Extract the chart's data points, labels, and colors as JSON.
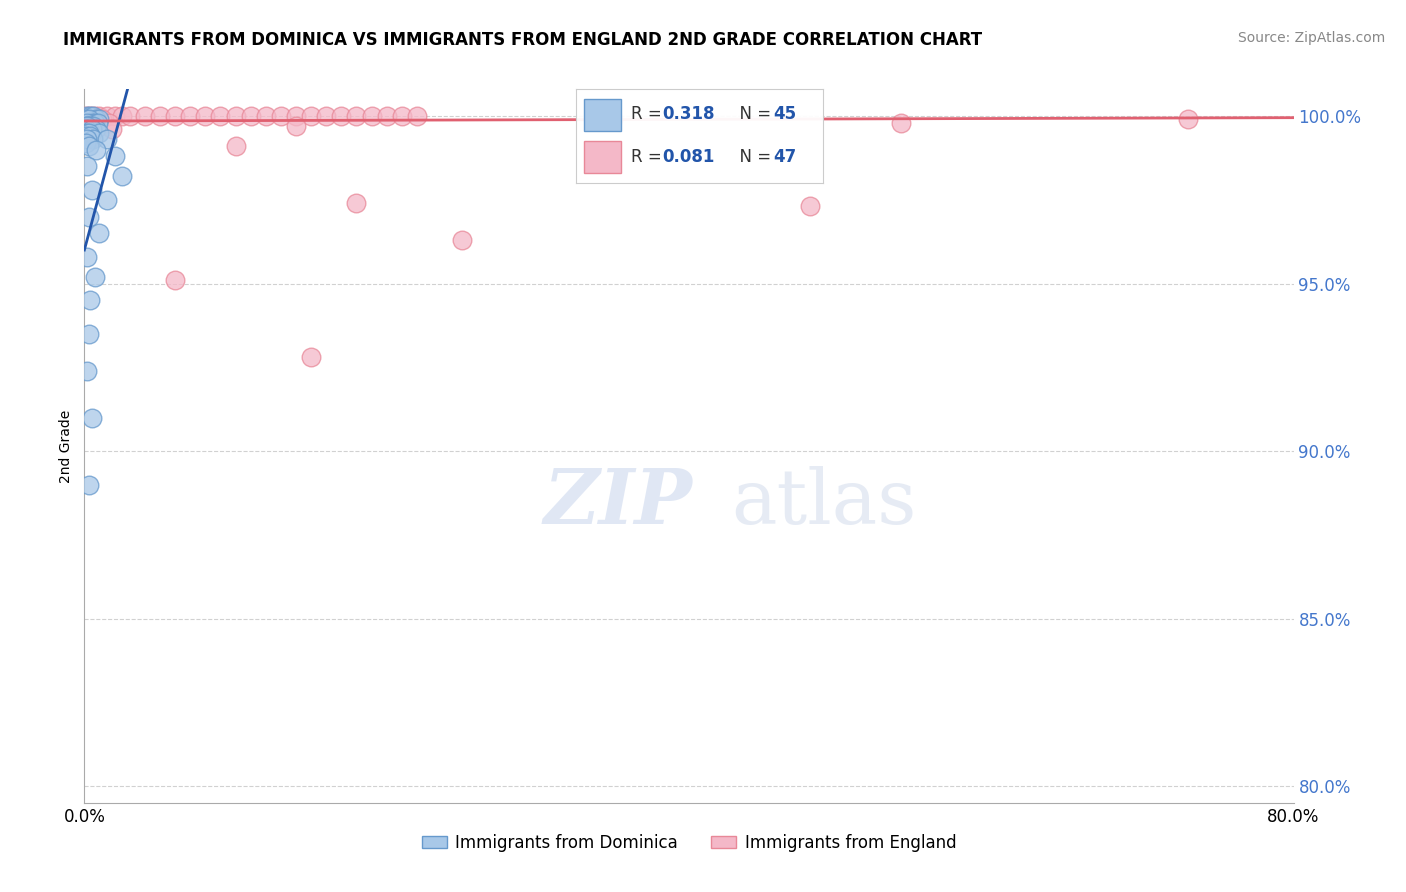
{
  "title": "IMMIGRANTS FROM DOMINICA VS IMMIGRANTS FROM ENGLAND 2ND GRADE CORRELATION CHART",
  "source": "Source: ZipAtlas.com",
  "ylabel": "2nd Grade",
  "xlim": [
    0.0,
    0.8
  ],
  "ylim": [
    0.795,
    1.008
  ],
  "yticks": [
    0.8,
    0.85,
    0.9,
    0.95,
    1.0
  ],
  "ytick_labels": [
    "80.0%",
    "85.0%",
    "90.0%",
    "95.0%",
    "100.0%"
  ],
  "xticks": [
    0.0,
    0.1,
    0.2,
    0.3,
    0.4,
    0.5,
    0.6,
    0.7,
    0.8
  ],
  "xtick_labels": [
    "0.0%",
    "",
    "",
    "",
    "",
    "",
    "",
    "",
    "80.0%"
  ],
  "blue_R": 0.318,
  "blue_N": 45,
  "pink_R": 0.081,
  "pink_N": 47,
  "blue_color": "#a8c8e8",
  "pink_color": "#f4b8c8",
  "blue_edge_color": "#6699cc",
  "pink_edge_color": "#e88898",
  "blue_line_color": "#2255aa",
  "pink_line_color": "#e06070",
  "legend_label_blue": "Immigrants from Dominica",
  "legend_label_pink": "Immigrants from England",
  "blue_line_x0": 0.0,
  "blue_line_y0": 0.96,
  "blue_line_x1": 0.025,
  "blue_line_y1": 1.002,
  "pink_line_x0": 0.0,
  "pink_line_y0": 0.9985,
  "pink_line_x1": 0.8,
  "pink_line_y1": 0.9995,
  "blue_dots": [
    [
      0.002,
      1.0
    ],
    [
      0.004,
      1.0
    ],
    [
      0.006,
      1.0
    ],
    [
      0.008,
      0.999
    ],
    [
      0.01,
      0.999
    ],
    [
      0.001,
      0.999
    ],
    [
      0.003,
      0.999
    ],
    [
      0.005,
      0.998
    ],
    [
      0.007,
      0.998
    ],
    [
      0.002,
      0.998
    ],
    [
      0.009,
      0.998
    ],
    [
      0.003,
      0.997
    ],
    [
      0.001,
      0.997
    ],
    [
      0.004,
      0.997
    ],
    [
      0.006,
      0.997
    ],
    [
      0.002,
      0.997
    ],
    [
      0.008,
      0.996
    ],
    [
      0.003,
      0.996
    ],
    [
      0.001,
      0.996
    ],
    [
      0.005,
      0.996
    ],
    [
      0.002,
      0.995
    ],
    [
      0.01,
      0.995
    ],
    [
      0.003,
      0.995
    ],
    [
      0.001,
      0.994
    ],
    [
      0.004,
      0.994
    ],
    [
      0.006,
      0.993
    ],
    [
      0.002,
      0.993
    ],
    [
      0.015,
      0.993
    ],
    [
      0.001,
      0.992
    ],
    [
      0.003,
      0.991
    ],
    [
      0.008,
      0.99
    ],
    [
      0.02,
      0.988
    ],
    [
      0.002,
      0.985
    ],
    [
      0.025,
      0.982
    ],
    [
      0.005,
      0.978
    ],
    [
      0.015,
      0.975
    ],
    [
      0.003,
      0.97
    ],
    [
      0.01,
      0.965
    ],
    [
      0.002,
      0.958
    ],
    [
      0.007,
      0.952
    ],
    [
      0.004,
      0.945
    ],
    [
      0.003,
      0.935
    ],
    [
      0.002,
      0.924
    ],
    [
      0.005,
      0.91
    ],
    [
      0.003,
      0.89
    ]
  ],
  "pink_dots": [
    [
      0.001,
      1.0
    ],
    [
      0.003,
      1.0
    ],
    [
      0.005,
      1.0
    ],
    [
      0.007,
      1.0
    ],
    [
      0.01,
      1.0
    ],
    [
      0.015,
      1.0
    ],
    [
      0.02,
      1.0
    ],
    [
      0.025,
      1.0
    ],
    [
      0.03,
      1.0
    ],
    [
      0.04,
      1.0
    ],
    [
      0.05,
      1.0
    ],
    [
      0.06,
      1.0
    ],
    [
      0.07,
      1.0
    ],
    [
      0.08,
      1.0
    ],
    [
      0.09,
      1.0
    ],
    [
      0.1,
      1.0
    ],
    [
      0.11,
      1.0
    ],
    [
      0.12,
      1.0
    ],
    [
      0.13,
      1.0
    ],
    [
      0.14,
      1.0
    ],
    [
      0.15,
      1.0
    ],
    [
      0.16,
      1.0
    ],
    [
      0.17,
      1.0
    ],
    [
      0.18,
      1.0
    ],
    [
      0.19,
      1.0
    ],
    [
      0.2,
      1.0
    ],
    [
      0.21,
      1.0
    ],
    [
      0.22,
      1.0
    ],
    [
      0.002,
      0.999
    ],
    [
      0.004,
      0.999
    ],
    [
      0.008,
      0.999
    ],
    [
      0.012,
      0.999
    ],
    [
      0.35,
      0.999
    ],
    [
      0.006,
      0.998
    ],
    [
      0.016,
      0.998
    ],
    [
      0.14,
      0.997
    ],
    [
      0.002,
      0.996
    ],
    [
      0.018,
      0.996
    ],
    [
      0.004,
      0.993
    ],
    [
      0.1,
      0.991
    ],
    [
      0.18,
      0.974
    ],
    [
      0.48,
      0.973
    ],
    [
      0.25,
      0.963
    ],
    [
      0.06,
      0.951
    ],
    [
      0.15,
      0.928
    ],
    [
      0.73,
      0.999
    ],
    [
      0.54,
      0.998
    ]
  ]
}
